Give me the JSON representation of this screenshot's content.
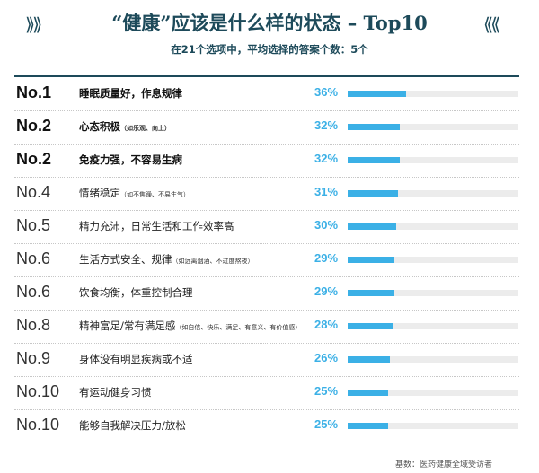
{
  "header": {
    "title": "“健康”应该是什么样的状态 – Top10",
    "subtitle": "在21个选项中，平均选择的答案个数：5个",
    "deco_left": "⟫⟫",
    "deco_right": "⟪⟪"
  },
  "chart_data": {
    "type": "bar",
    "title": "“健康”应该是什么样的状态 – Top10",
    "subtitle": "在21个选项中，平均选择的答案个数：5个",
    "orientation": "horizontal",
    "xlim": [
      0,
      100
    ],
    "value_unit": "%",
    "rows": [
      {
        "rank": "No.1",
        "label": "睡眠质量好，作息规律",
        "note": "",
        "value": 36,
        "value_label": "36%",
        "emphasis": true
      },
      {
        "rank": "No.2",
        "label": "心态积极",
        "note": "（如乐观、向上）",
        "value": 32,
        "value_label": "32%",
        "emphasis": true
      },
      {
        "rank": "No.2",
        "label": "免疫力强，不容易生病",
        "note": "",
        "value": 32,
        "value_label": "32%",
        "emphasis": true
      },
      {
        "rank": "No.4",
        "label": "情绪稳定",
        "note": "（如不焦躁、不易生气）",
        "value": 31,
        "value_label": "31%",
        "emphasis": false
      },
      {
        "rank": "No.5",
        "label": "精力充沛，日常生活和工作效率高",
        "note": "",
        "value": 30,
        "value_label": "30%",
        "emphasis": false
      },
      {
        "rank": "No.6",
        "label": "生活方式安全、规律",
        "note": "（如远离烟酒、不过度熬夜）",
        "value": 29,
        "value_label": "29%",
        "emphasis": false
      },
      {
        "rank": "No.6",
        "label": "饮食均衡，体重控制合理",
        "note": "",
        "value": 29,
        "value_label": "29%",
        "emphasis": false
      },
      {
        "rank": "No.8",
        "label": "精神富足/常有满足感",
        "note": "（如自信、快乐、满足、有意义、有价值感）",
        "value": 28,
        "value_label": "28%",
        "emphasis": false
      },
      {
        "rank": "No.9",
        "label": "身体没有明显疾病或不适",
        "note": "",
        "value": 26,
        "value_label": "26%",
        "emphasis": false
      },
      {
        "rank": "No.10",
        "label": "有运动健身习惯",
        "note": "",
        "value": 25,
        "value_label": "25%",
        "emphasis": false
      },
      {
        "rank": "No.10",
        "label": "能够自我解决压力/放松",
        "note": "",
        "value": 25,
        "value_label": "25%",
        "emphasis": false
      }
    ]
  },
  "footer": {
    "source": "基数：医药健康全域受访者"
  },
  "colors": {
    "accent": "#3bb0e6",
    "track": "#ececec",
    "title": "#1d4a5a"
  }
}
